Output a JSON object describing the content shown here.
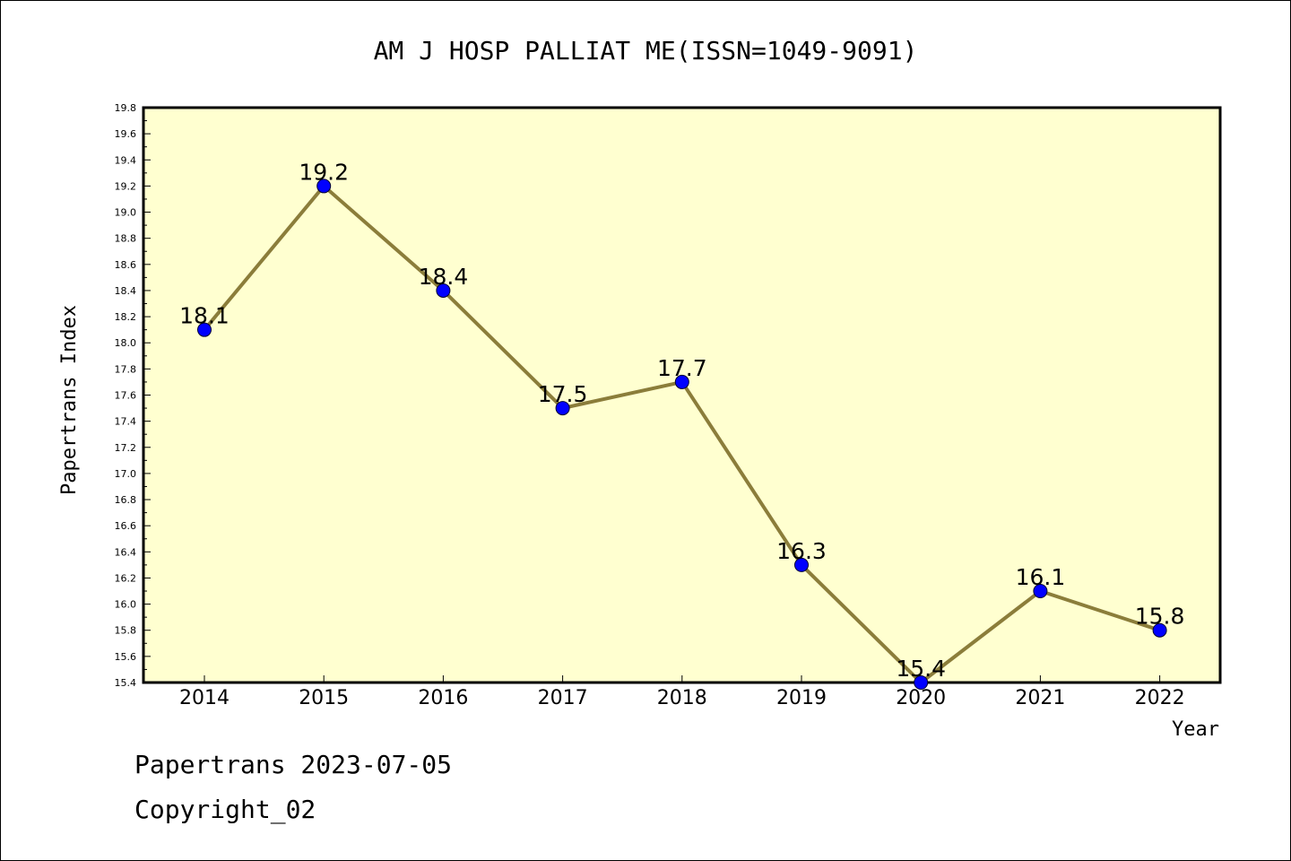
{
  "chart_data": {
    "type": "line",
    "title": "AM J HOSP PALLIAT ME(ISSN=1049-9091)",
    "xlabel": "Year",
    "ylabel": "Papertrans Index",
    "categories": [
      "2014",
      "2015",
      "2016",
      "2017",
      "2018",
      "2019",
      "2020",
      "2021",
      "2022"
    ],
    "values": [
      18.1,
      19.2,
      18.4,
      17.5,
      17.7,
      16.3,
      15.4,
      16.1,
      15.8
    ],
    "data_labels": [
      "18.1",
      "19.2",
      "18.4",
      "17.5",
      "17.7",
      "16.3",
      "15.4",
      "16.1",
      "15.8"
    ],
    "ylim": [
      15.4,
      19.8
    ],
    "yticks": [
      "15.4",
      "15.6",
      "15.8",
      "16.0",
      "16.2",
      "16.4",
      "16.6",
      "16.8",
      "17.0",
      "17.2",
      "17.4",
      "17.6",
      "17.8",
      "18.0",
      "18.2",
      "18.4",
      "18.6",
      "18.8",
      "19.0",
      "19.2",
      "19.4",
      "19.6",
      "19.8"
    ],
    "grid": false,
    "colors": {
      "plot_background": "#ffffd0",
      "line": "#8b7d3a",
      "marker": "#0000ff"
    }
  },
  "footer": {
    "line1": "Papertrans 2023-07-05",
    "line2": "Copyright_02"
  }
}
